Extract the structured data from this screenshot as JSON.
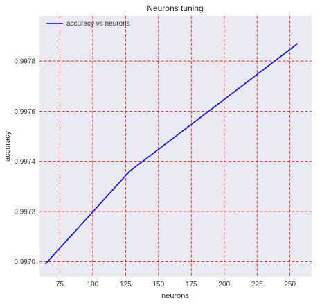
{
  "chart_data": {
    "type": "line",
    "title": "Neurons tuning",
    "xlabel": "neurons",
    "ylabel": "accuracy",
    "xlim": [
      59.5,
      266.5
    ],
    "ylim": [
      0.99694,
      0.99798
    ],
    "xticks": [
      75,
      100,
      125,
      150,
      175,
      200,
      225,
      250
    ],
    "yticks": [
      0.997,
      0.9972,
      0.9974,
      0.9976,
      0.9978
    ],
    "ytick_labels": [
      "0.9970",
      "0.9972",
      "0.9974",
      "0.9976",
      "0.9978"
    ],
    "grid": true,
    "legend_position": "top-left",
    "series": [
      {
        "name": "accuracy vs neurons",
        "color": "#0000ff",
        "x": [
          64,
          128,
          256
        ],
        "y": [
          0.99699,
          0.99736,
          0.99787
        ]
      }
    ]
  },
  "colors": {
    "background": "#eaeaf2",
    "grid": "#ff0000",
    "line": "#0000ff"
  }
}
